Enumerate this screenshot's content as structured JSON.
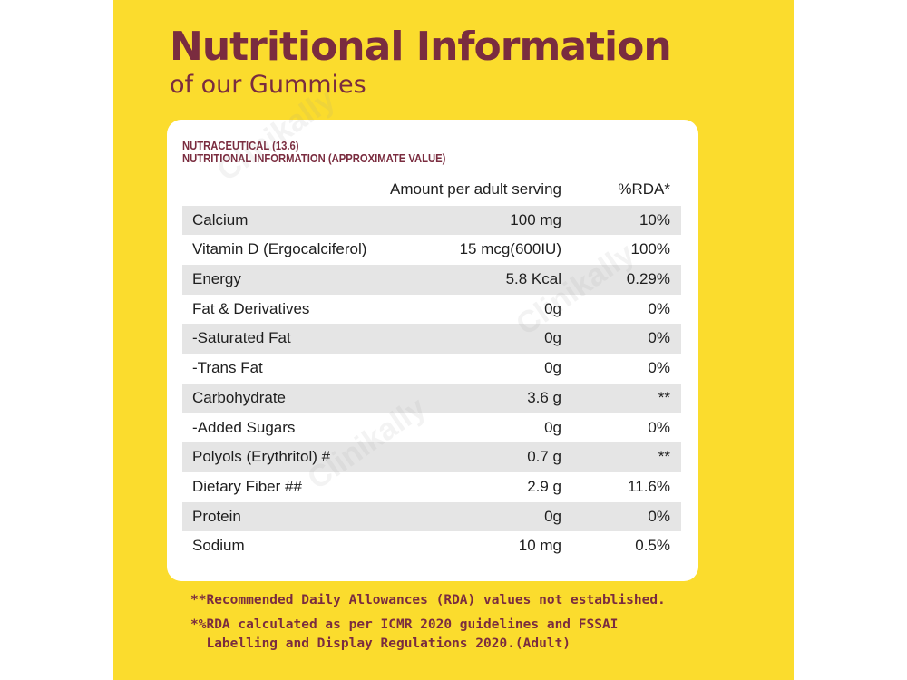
{
  "title": "Nutritional Information",
  "subtitle": "of our Gummies",
  "card": {
    "heading_line1": "NUTRACEUTICAL (13.6)",
    "heading_line2": "NUTRITIONAL INFORMATION (APPROXIMATE VALUE)"
  },
  "table": {
    "headers": {
      "amount": "Amount per adult serving",
      "rda": "%RDA*"
    },
    "rows": [
      {
        "name": "Calcium",
        "amount": "100 mg",
        "rda": "10%"
      },
      {
        "name": "Vitamin D (Ergocalciferol)",
        "amount": "15 mcg(600IU)",
        "rda": "100%"
      },
      {
        "name": "Energy",
        "amount": "5.8 Kcal",
        "rda": "0.29%"
      },
      {
        "name": "Fat & Derivatives",
        "amount": "0g",
        "rda": "0%"
      },
      {
        "name": "-Saturated Fat",
        "amount": "0g",
        "rda": "0%"
      },
      {
        "name": "-Trans Fat",
        "amount": "0g",
        "rda": "0%"
      },
      {
        "name": "Carbohydrate",
        "amount": "3.6 g",
        "rda": "**"
      },
      {
        "name": "-Added Sugars",
        "amount": "0g",
        "rda": "0%"
      },
      {
        "name": "Polyols (Erythritol) #",
        "amount": "0.7 g",
        "rda": "**"
      },
      {
        "name": "Dietary Fiber ##",
        "amount": "2.9 g",
        "rda": "11.6%"
      },
      {
        "name": "Protein",
        "amount": "0g",
        "rda": "0%"
      },
      {
        "name": "Sodium",
        "amount": "10 mg",
        "rda": "0.5%"
      }
    ]
  },
  "notes": {
    "note1": "**Recommended Daily Allowances (RDA) values not established.",
    "note2_line1": "*%RDA calculated as per ICMR 2020 guidelines and FSSAI",
    "note2_line2": "  Labelling and Display Regulations 2020.(Adult)"
  },
  "watermark": "Clinikally",
  "colors": {
    "panel": "#fbdc2d",
    "accent": "#7a2c3f",
    "row_shade": "#e5e5e5"
  }
}
